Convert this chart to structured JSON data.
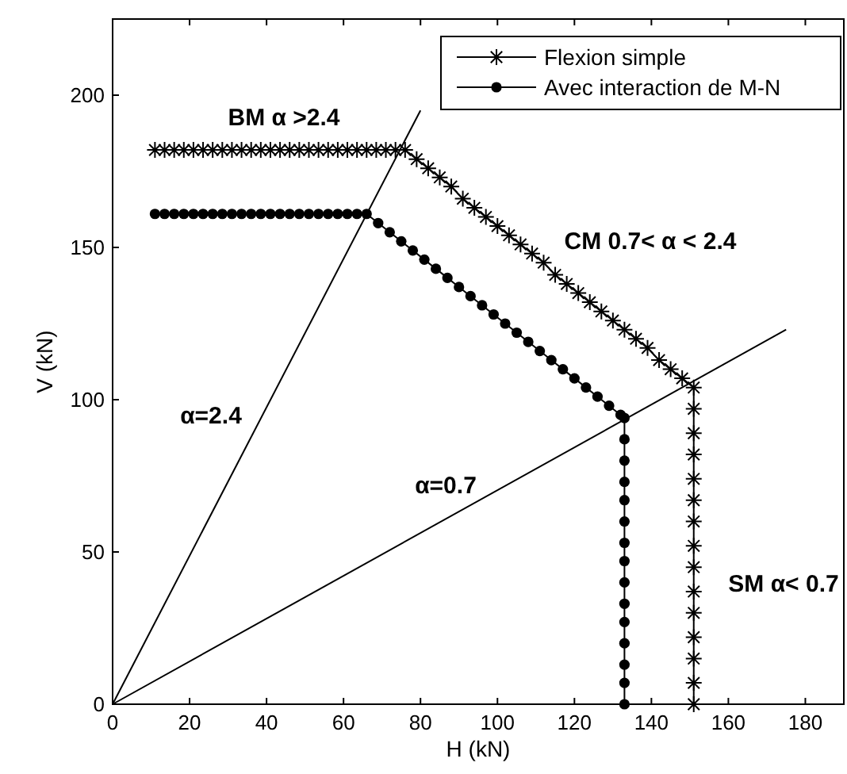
{
  "chart_data": {
    "type": "line",
    "xlabel": "H (kN)",
    "ylabel": "V (kN)",
    "xlim": [
      0,
      190
    ],
    "ylim": [
      0,
      225
    ],
    "xticks": [
      0,
      20,
      40,
      60,
      80,
      100,
      120,
      140,
      160,
      180
    ],
    "yticks": [
      0,
      50,
      100,
      150,
      200
    ],
    "grid": false,
    "legend": "top right",
    "series": [
      {
        "name": "Flexion simple",
        "color": "#000000",
        "marker": "cross",
        "x": [
          11,
          13.5,
          16,
          18.5,
          21,
          23.5,
          26,
          28.5,
          31,
          33.5,
          36,
          38.5,
          41,
          43.5,
          46,
          48.5,
          51,
          53.5,
          56,
          58.5,
          61,
          63.5,
          66,
          68.5,
          71,
          73.5,
          76,
          79,
          82,
          85,
          88,
          91,
          94,
          97,
          100,
          103,
          106,
          109,
          112,
          115,
          118,
          121,
          124,
          127,
          130,
          133,
          136,
          139,
          142,
          145,
          148,
          151,
          151,
          151,
          151,
          151,
          151,
          151,
          151,
          151,
          151,
          151,
          151,
          151,
          151,
          151
        ],
        "values": [
          182,
          182,
          182,
          182,
          182,
          182,
          182,
          182,
          182,
          182,
          182,
          182,
          182,
          182,
          182,
          182,
          182,
          182,
          182,
          182,
          182,
          182,
          182,
          182,
          182,
          182,
          182,
          179,
          176,
          173,
          170,
          166,
          163,
          160,
          157,
          154,
          151,
          148,
          145,
          141,
          138,
          135,
          132,
          129,
          126,
          123,
          120,
          117,
          113,
          110,
          107,
          104,
          97,
          89,
          82,
          74,
          67,
          60,
          52,
          45,
          37,
          30,
          22,
          15,
          7,
          0
        ]
      },
      {
        "name": "Avec interaction de M-N",
        "color": "#000000",
        "marker": "circle",
        "x": [
          11,
          13.5,
          16,
          18.5,
          21,
          23.5,
          26,
          28.5,
          31,
          33.5,
          36,
          38.5,
          41,
          43.5,
          46,
          48.5,
          51,
          53.5,
          56,
          58.5,
          61,
          63.5,
          66,
          69,
          72,
          75,
          78,
          81,
          84,
          87,
          90,
          93,
          96,
          99,
          102,
          105,
          108,
          111,
          114,
          117,
          120,
          123,
          126,
          129,
          132,
          133,
          133,
          133,
          133,
          133,
          133,
          133,
          133,
          133,
          133,
          133,
          133,
          133,
          133,
          133
        ],
        "values": [
          161,
          161,
          161,
          161,
          161,
          161,
          161,
          161,
          161,
          161,
          161,
          161,
          161,
          161,
          161,
          161,
          161,
          161,
          161,
          161,
          161,
          161,
          161,
          158,
          155,
          152,
          149,
          146,
          143,
          140,
          137,
          134,
          131,
          128,
          125,
          122,
          119,
          116,
          113,
          110,
          107,
          104,
          101,
          98,
          95,
          94,
          87,
          80,
          73,
          67,
          60,
          53,
          47,
          40,
          33,
          27,
          20,
          13,
          7,
          0
        ]
      },
      {
        "color": "#000000",
        "marker": "none",
        "x": [
          0,
          80
        ],
        "values": [
          0,
          195
        ]
      },
      {
        "color": "#000000",
        "marker": "none",
        "x": [
          0,
          175
        ],
        "values": [
          0,
          123
        ]
      }
    ],
    "annotations": [
      "BM α >2.4",
      "CM 0.7< α < 2.4",
      "SM α< 0.7",
      "α=2.4",
      "α=0.7"
    ]
  }
}
